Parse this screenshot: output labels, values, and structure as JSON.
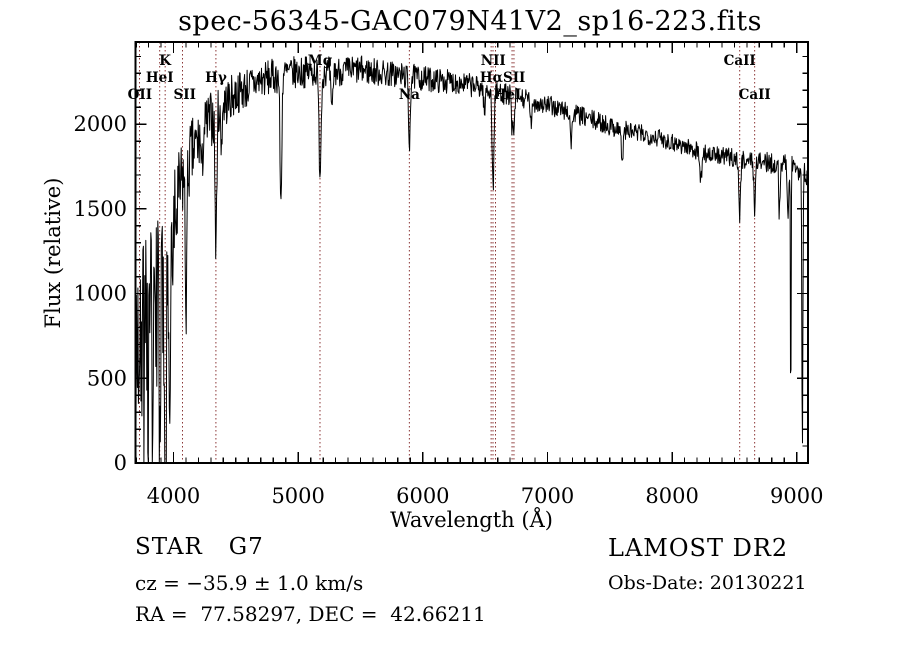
{
  "chart_data": {
    "type": "line",
    "title": "spec-56345-GAC079N41V2_sp16-223.fits",
    "xlabel": "Wavelength (Å)",
    "ylabel": "Flux (relative)",
    "xlim": [
      3695,
      9090
    ],
    "ylim": [
      0,
      2485
    ],
    "x_ticks": [
      4000,
      5000,
      6000,
      7000,
      8000,
      9000
    ],
    "y_ticks": [
      0,
      500,
      1000,
      1500,
      2000
    ],
    "x_minor_step": 100,
    "y_minor_step": 100,
    "grid": false,
    "legend": "none",
    "line_color": "#000000",
    "marker_color": "#8B3535",
    "seed": 7,
    "spectral_lines": [
      3727,
      3889,
      3933,
      4072,
      4340,
      5175,
      5892,
      6548,
      6563,
      6583,
      6716,
      6731,
      8542,
      8662
    ],
    "line_labels": [
      {
        "text": "OII",
        "wavelength": 3730,
        "row": 3
      },
      {
        "text": "HeI",
        "wavelength": 3889,
        "row": 2
      },
      {
        "text": "K",
        "wavelength": 3933,
        "row": 1
      },
      {
        "text": "SII",
        "wavelength": 4090,
        "row": 3
      },
      {
        "text": "Hγ",
        "wavelength": 4340,
        "row": 2
      },
      {
        "text": "Mg",
        "wavelength": 5175,
        "row": 1
      },
      {
        "text": "Na",
        "wavelength": 5892,
        "row": 3
      },
      {
        "text": "NII",
        "wavelength": 6565,
        "row": 1
      },
      {
        "text": "HαSII",
        "wavelength": 6640,
        "row": 2
      },
      {
        "text": "HeI",
        "wavelength": 6678,
        "row": 3
      },
      {
        "text": "CaII",
        "wavelength": 8542,
        "row": 1
      },
      {
        "text": "CaII",
        "wavelength": 8662,
        "row": 3
      }
    ],
    "continuum": [
      [
        3700,
        750
      ],
      [
        3780,
        800
      ],
      [
        3850,
        880
      ],
      [
        3920,
        950
      ],
      [
        3980,
        1150
      ],
      [
        4020,
        1450
      ],
      [
        4080,
        1700
      ],
      [
        4150,
        1820
      ],
      [
        4250,
        1980
      ],
      [
        4350,
        2080
      ],
      [
        4500,
        2180
      ],
      [
        4700,
        2260
      ],
      [
        4900,
        2300
      ],
      [
        5100,
        2310
      ],
      [
        5300,
        2310
      ],
      [
        5500,
        2320
      ],
      [
        5700,
        2300
      ],
      [
        5900,
        2280
      ],
      [
        6100,
        2260
      ],
      [
        6300,
        2245
      ],
      [
        6500,
        2210
      ],
      [
        6700,
        2170
      ],
      [
        6900,
        2130
      ],
      [
        7100,
        2090
      ],
      [
        7300,
        2040
      ],
      [
        7500,
        1990
      ],
      [
        7700,
        1950
      ],
      [
        7900,
        1920
      ],
      [
        8100,
        1870
      ],
      [
        8300,
        1820
      ],
      [
        8500,
        1800
      ],
      [
        8700,
        1780
      ],
      [
        8900,
        1760
      ],
      [
        9000,
        1745
      ],
      [
        9090,
        1700
      ]
    ],
    "noise_amplitude": [
      [
        3700,
        600
      ],
      [
        3900,
        550
      ],
      [
        3990,
        420
      ],
      [
        4050,
        280
      ],
      [
        4200,
        190
      ],
      [
        4400,
        140
      ],
      [
        4700,
        110
      ],
      [
        5000,
        95
      ],
      [
        5500,
        85
      ],
      [
        6000,
        75
      ],
      [
        6500,
        65
      ],
      [
        7000,
        60
      ],
      [
        7500,
        58
      ],
      [
        8000,
        55
      ],
      [
        8600,
        55
      ],
      [
        9090,
        70
      ]
    ],
    "absorption_features": [
      [
        3797,
        450,
        6
      ],
      [
        3835,
        500,
        6
      ],
      [
        3889,
        600,
        6
      ],
      [
        3933,
        950,
        6
      ],
      [
        3968,
        850,
        6
      ],
      [
        4101,
        780,
        7
      ],
      [
        4227,
        260,
        6
      ],
      [
        4340,
        820,
        7
      ],
      [
        4383,
        220,
        6
      ],
      [
        4861,
        780,
        7
      ],
      [
        5175,
        570,
        9
      ],
      [
        5270,
        270,
        7
      ],
      [
        5892,
        390,
        7
      ],
      [
        6495,
        160,
        6
      ],
      [
        6563,
        590,
        7
      ],
      [
        6716,
        240,
        5
      ],
      [
        6731,
        240,
        5
      ],
      [
        6870,
        170,
        6
      ],
      [
        7190,
        180,
        7
      ],
      [
        7600,
        180,
        8
      ],
      [
        8230,
        190,
        7
      ],
      [
        8542,
        340,
        7
      ],
      [
        8662,
        270,
        7
      ],
      [
        8860,
        290,
        5
      ],
      [
        8930,
        340,
        5
      ],
      [
        8952,
        1450,
        3
      ],
      [
        9045,
        1680,
        4
      ]
    ]
  },
  "footer": {
    "class_label": "STAR",
    "subclass": "G7",
    "cz_line": "cz = −35.9 ± 1.0 km/s",
    "radec_line": "RA =  77.58297, DEC =  42.66211",
    "survey": "LAMOST DR2",
    "obs_date": "Obs-Date: 20130221"
  }
}
